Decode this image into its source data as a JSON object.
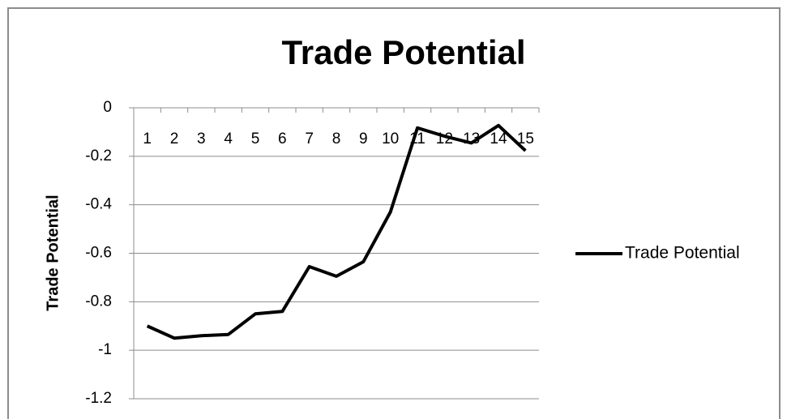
{
  "chart_data": {
    "type": "line",
    "title": "Trade Potential",
    "y_label": "Trade Potential",
    "categories": [
      "1",
      "2",
      "3",
      "4",
      "5",
      "6",
      "7",
      "8",
      "9",
      "10",
      "11",
      "12",
      "13",
      "14",
      "15"
    ],
    "series": [
      {
        "name": "Trade Potential",
        "color": "#000000",
        "values": [
          -0.9,
          -0.95,
          -0.94,
          -0.935,
          -0.85,
          -0.84,
          -0.655,
          -0.695,
          -0.635,
          -0.43,
          -0.083,
          -0.117,
          -0.145,
          -0.073,
          -0.177
        ]
      }
    ],
    "ylim": [
      -1.2,
      0
    ],
    "yticks": [
      0,
      -0.2,
      -0.4,
      -0.6,
      -0.8,
      -1,
      -1.2
    ],
    "grid": true,
    "legend": "right"
  }
}
